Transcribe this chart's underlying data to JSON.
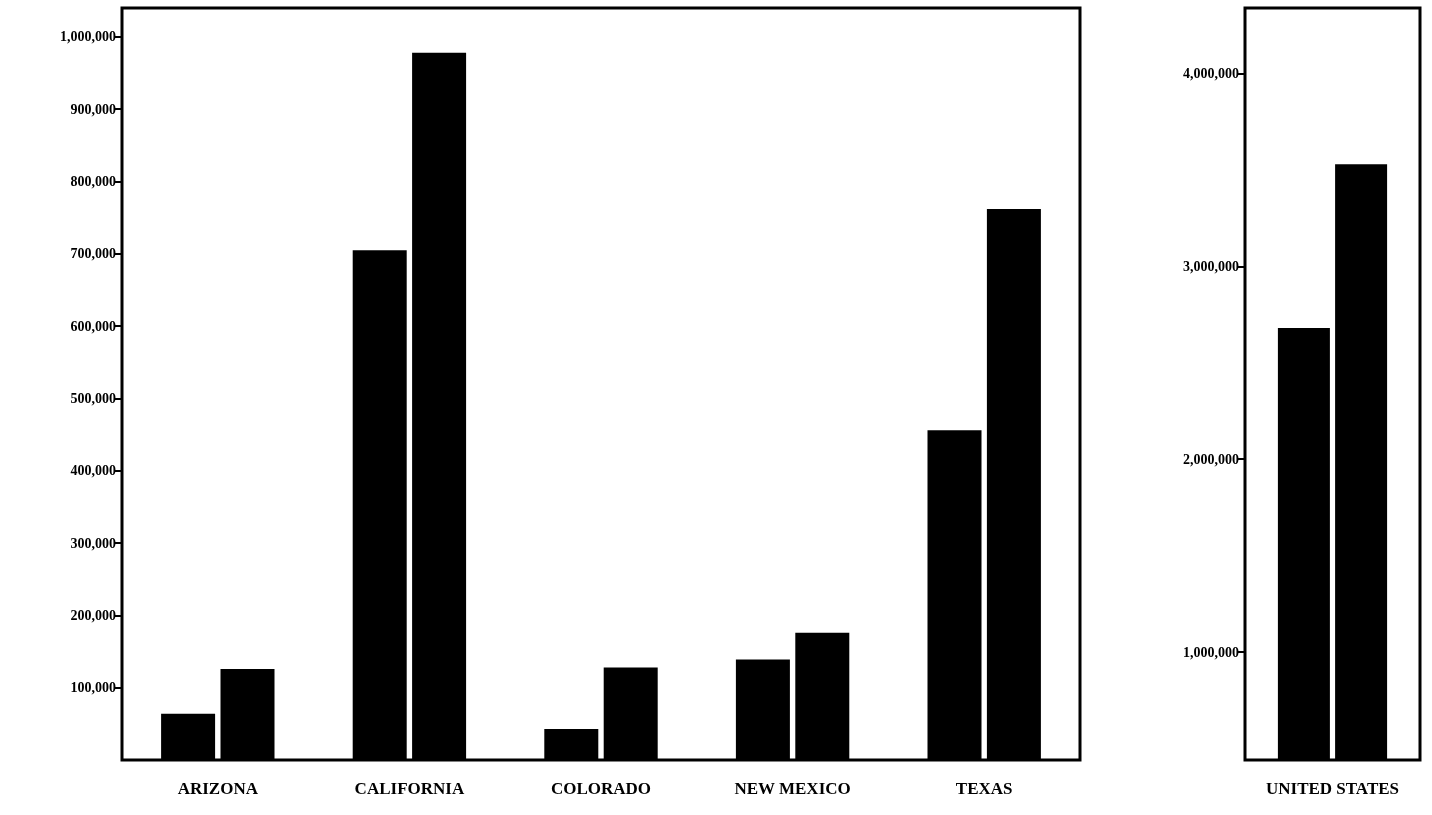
{
  "chart_data": [
    {
      "type": "bar",
      "categories": [
        "ARIZONA",
        "CALIFORNIA",
        "COLORADO",
        "NEW MEXICO",
        "TEXAS"
      ],
      "series": [
        {
          "color": "#000000",
          "values": [
            64000,
            705000,
            43000,
            139000,
            456000
          ]
        },
        {
          "color": "#000000",
          "values": [
            126000,
            978000,
            128000,
            176000,
            762000
          ]
        }
      ],
      "ylim": [
        0,
        1040000
      ],
      "yticks": [
        {
          "value": 100000,
          "label": "100,000"
        },
        {
          "value": 200000,
          "label": "200,000"
        },
        {
          "value": 300000,
          "label": "300,000"
        },
        {
          "value": 400000,
          "label": "400,000"
        },
        {
          "value": 500000,
          "label": "500,000"
        },
        {
          "value": 600000,
          "label": "600,000"
        },
        {
          "value": 700000,
          "label": "700,000"
        },
        {
          "value": 800000,
          "label": "800,000"
        },
        {
          "value": 900000,
          "label": "900,000"
        },
        {
          "value": 1000000,
          "label": "1,000,000"
        }
      ],
      "grid": false
    },
    {
      "type": "bar",
      "categories": [
        "UNITED STATES"
      ],
      "series": [
        {
          "color": "#000000",
          "values": [
            2680000
          ]
        },
        {
          "color": "#000000",
          "values": [
            3530000
          ]
        }
      ],
      "ylim": [
        440000,
        4340000
      ],
      "yticks": [
        {
          "value": 1000000,
          "label": "1,000,000"
        },
        {
          "value": 2000000,
          "label": "2,000,000"
        },
        {
          "value": 3000000,
          "label": "3,000,000"
        },
        {
          "value": 4000000,
          "label": "4,000,000"
        }
      ],
      "grid": false
    }
  ]
}
